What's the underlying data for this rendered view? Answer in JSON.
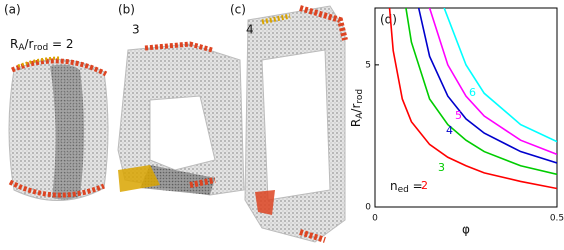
{
  "panels": [
    {
      "label": "(a)",
      "annotation": [
        "R",
        "A",
        "/r",
        "rod",
        " = 2"
      ]
    },
    {
      "label": "(b)",
      "annotation": [
        "3"
      ]
    },
    {
      "label": "(c)",
      "annotation": [
        "4"
      ]
    }
  ],
  "chart_data": {
    "type": "line",
    "panel_label": "(d)",
    "x_label": "φ",
    "y_label": [
      "R",
      "A",
      "/r",
      "rod"
    ],
    "legend_prefix": [
      "n",
      "ed",
      " = "
    ],
    "xlim": [
      0,
      0.5
    ],
    "ylim": [
      0,
      7
    ],
    "xticks": [
      0,
      0.5
    ],
    "yticks": [
      0,
      5
    ],
    "series": [
      {
        "name": "2",
        "color": "#ff0000",
        "x": [
          0.04,
          0.05,
          0.075,
          0.1,
          0.15,
          0.2,
          0.25,
          0.3,
          0.4,
          0.5
        ],
        "values": [
          7,
          5.5,
          3.8,
          3.0,
          2.2,
          1.75,
          1.45,
          1.2,
          0.9,
          0.65
        ]
      },
      {
        "name": "3",
        "color": "#00cc00",
        "x": [
          0.085,
          0.1,
          0.15,
          0.2,
          0.25,
          0.3,
          0.4,
          0.5
        ],
        "values": [
          7,
          5.8,
          3.8,
          2.9,
          2.35,
          1.95,
          1.45,
          1.15
        ]
      },
      {
        "name": "4",
        "color": "#0000cc",
        "x": [
          0.12,
          0.15,
          0.2,
          0.25,
          0.3,
          0.4,
          0.5
        ],
        "values": [
          7,
          5.3,
          3.9,
          3.1,
          2.6,
          1.95,
          1.55
        ]
      },
      {
        "name": "5",
        "color": "#ff00ff",
        "x": [
          0.15,
          0.2,
          0.25,
          0.3,
          0.4,
          0.5
        ],
        "values": [
          7,
          5,
          3.9,
          3.2,
          2.35,
          1.85
        ]
      },
      {
        "name": "6",
        "color": "#00ffff",
        "x": [
          0.19,
          0.25,
          0.3,
          0.4,
          0.5
        ],
        "values": [
          7,
          5,
          4,
          2.9,
          2.3
        ]
      }
    ]
  }
}
